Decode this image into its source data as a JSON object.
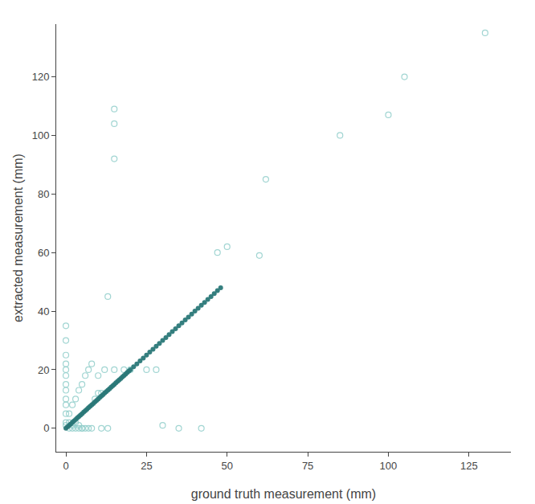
{
  "chart_data": {
    "type": "scatter",
    "xlabel": "ground truth measurement (mm)",
    "ylabel": "extracted measurement (mm)",
    "xlim": [
      -3,
      138
    ],
    "ylim": [
      -8,
      138
    ],
    "xticks": [
      0,
      25,
      50,
      75,
      100,
      125
    ],
    "yticks": [
      0,
      20,
      40,
      60,
      80,
      100,
      120
    ],
    "grid": false,
    "series": [
      {
        "color": "#90ceca",
        "marker": "open",
        "x": [
          0,
          0,
          0,
          0,
          0,
          0,
          0,
          0,
          0,
          0,
          0,
          2,
          3,
          4,
          5,
          6,
          7,
          1,
          2,
          3,
          4,
          5,
          6,
          7,
          8,
          10,
          12,
          15,
          18,
          20,
          25,
          28,
          13,
          15,
          15,
          15,
          47,
          50,
          60,
          62,
          85,
          100,
          105,
          130,
          0,
          1,
          2,
          3,
          4,
          9,
          10,
          11,
          5,
          8,
          11,
          13,
          30,
          35,
          42,
          0,
          1
        ],
        "values": [
          5,
          8,
          10,
          13,
          15,
          18,
          20,
          22,
          25,
          30,
          35,
          0,
          0,
          0,
          0,
          0,
          0,
          5,
          8,
          10,
          13,
          15,
          18,
          20,
          22,
          18,
          20,
          20,
          20,
          20,
          20,
          20,
          45,
          109,
          104,
          92,
          60,
          62,
          59,
          85,
          100,
          107,
          120,
          135,
          2,
          2,
          1,
          2,
          1,
          10,
          12,
          12,
          0,
          0,
          0,
          0,
          1,
          0,
          0,
          1,
          0
        ]
      },
      {
        "color": "#2a7878",
        "marker": "filled",
        "x": [
          0,
          0.5,
          1,
          1.5,
          2,
          2.5,
          3,
          3.5,
          4,
          4.5,
          5,
          5.5,
          6,
          6.5,
          7,
          7.5,
          8,
          8.5,
          9,
          9.5,
          10,
          10.5,
          11,
          11.5,
          12,
          12.5,
          13,
          13.5,
          14,
          14.5,
          15,
          15.5,
          16,
          16.5,
          17,
          17.5,
          18,
          18.5,
          19,
          19.5,
          20,
          21,
          22,
          23,
          24,
          25,
          26,
          27,
          28,
          29,
          30,
          31,
          32,
          33,
          34,
          35,
          36,
          37,
          38,
          39,
          40,
          41,
          42,
          43,
          44,
          45,
          46,
          47,
          48
        ],
        "values": [
          0,
          0.5,
          1,
          1.5,
          2,
          2.5,
          3,
          3.5,
          4,
          4.5,
          5,
          5.5,
          6,
          6.5,
          7,
          7.5,
          8,
          8.5,
          9,
          9.5,
          10,
          10.5,
          11,
          11.5,
          12,
          12.5,
          13,
          13.5,
          14,
          14.5,
          15,
          15.5,
          16,
          16.5,
          17,
          17.5,
          18,
          18.5,
          19,
          19.5,
          20,
          21,
          22,
          23,
          24,
          25,
          26,
          27,
          28,
          29,
          30,
          31,
          32,
          33,
          34,
          35,
          36,
          37,
          38,
          39,
          40,
          41,
          42,
          43,
          44,
          45,
          46,
          47,
          48
        ]
      }
    ]
  }
}
